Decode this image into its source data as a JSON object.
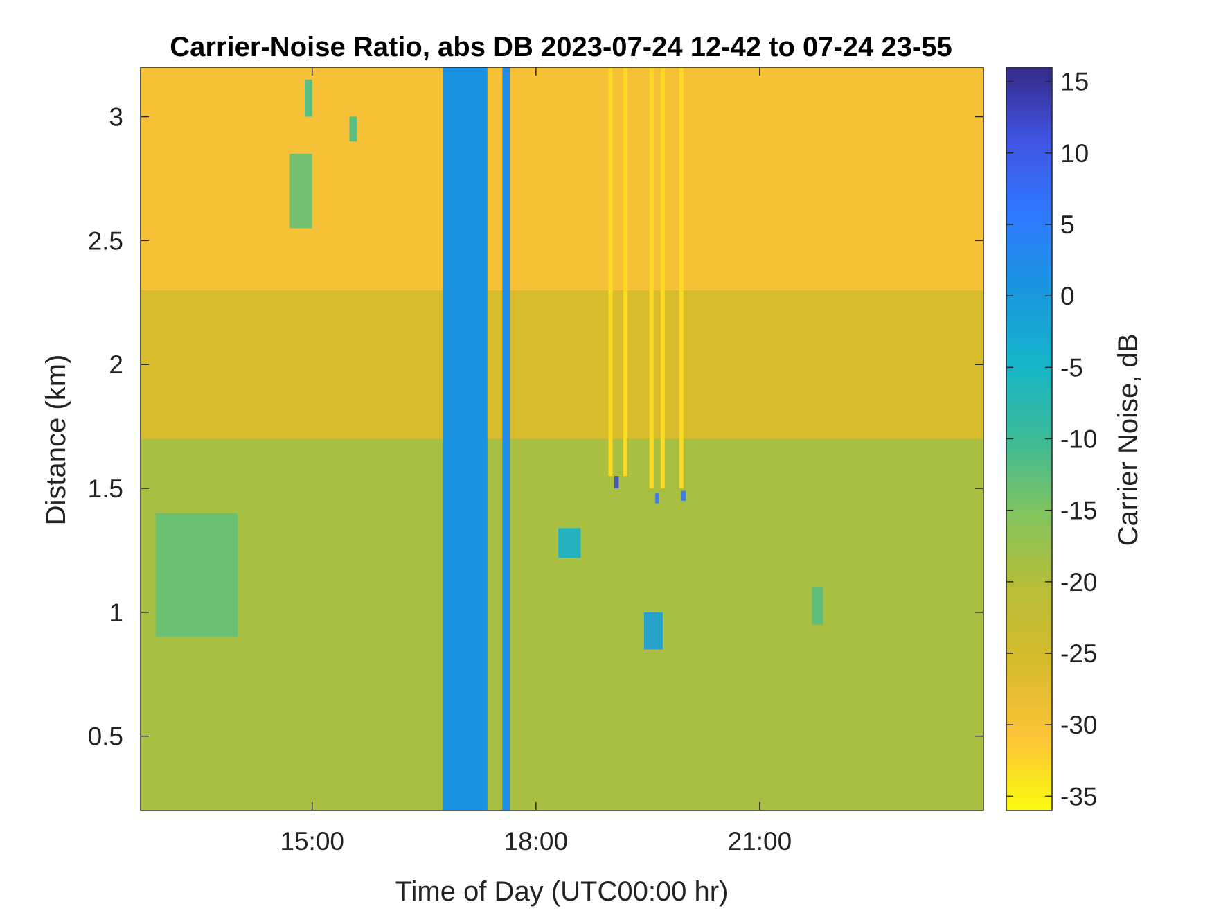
{
  "chart_data": {
    "type": "heatmap",
    "title": "Carrier-Noise Ratio, abs DB 2023-07-24 12-42 to 07-24 23-55",
    "xlabel": "Time of Day (UTC00:00 hr)",
    "ylabel": "Distance (km)",
    "x_range_hours": [
      12.7,
      24.0
    ],
    "y_range_km": [
      0.2,
      3.2
    ],
    "x_ticks": [
      {
        "value": 15,
        "label": "15:00"
      },
      {
        "value": 18,
        "label": "18:00"
      },
      {
        "value": 21,
        "label": "21:00"
      }
    ],
    "y_ticks": [
      {
        "value": 0.5,
        "label": "0.5"
      },
      {
        "value": 1.0,
        "label": "1"
      },
      {
        "value": 1.5,
        "label": "1.5"
      },
      {
        "value": 2.0,
        "label": "2"
      },
      {
        "value": 2.5,
        "label": "2.5"
      },
      {
        "value": 3.0,
        "label": "3"
      }
    ],
    "colorbar": {
      "label": "Carrier Noise, dB",
      "range": [
        -36,
        16
      ],
      "ticks": [
        "15",
        "10",
        "5",
        "0",
        "-5",
        "-10",
        "-15",
        "-20",
        "-25",
        "-30",
        "-35"
      ],
      "tick_values": [
        15,
        10,
        5,
        0,
        -5,
        -10,
        -15,
        -20,
        -25,
        -30,
        -35
      ],
      "colormap": "parula",
      "colors": [
        "#f9fb0e",
        "#fcc238",
        "#d6bb2b",
        "#b8bd38",
        "#81c45e",
        "#3cba98",
        "#15b6c8",
        "#1896df",
        "#2e79ff",
        "#4054e4",
        "#352a87"
      ]
    },
    "grid": false,
    "approximate_field": {
      "description_of_zones": "estimated values read from color",
      "background": [
        {
          "y_from": 2.3,
          "y_to": 3.2,
          "value": -30
        },
        {
          "y_from": 1.7,
          "y_to": 2.3,
          "value": -26
        },
        {
          "y_from": 0.2,
          "y_to": 1.7,
          "value": -19
        }
      ],
      "bands": [
        {
          "x_from": 16.75,
          "x_to": 17.35,
          "value": 1
        },
        {
          "x_from": 17.55,
          "x_to": 17.65,
          "value": 2
        }
      ],
      "cells": [
        {
          "x": 12.9,
          "y": 0.9,
          "w": 1.1,
          "h": 0.5,
          "value": -13
        },
        {
          "x": 14.7,
          "y": 2.55,
          "w": 0.3,
          "h": 0.3,
          "value": -13
        },
        {
          "x": 14.9,
          "y": 3.0,
          "w": 0.1,
          "h": 0.15,
          "value": -11
        },
        {
          "x": 15.5,
          "y": 2.9,
          "w": 0.1,
          "h": 0.1,
          "value": -11
        },
        {
          "x": 18.3,
          "y": 1.22,
          "w": 0.3,
          "h": 0.12,
          "value": -4
        },
        {
          "x": 19.45,
          "y": 0.85,
          "w": 0.25,
          "h": 0.15,
          "value": -1
        },
        {
          "x": 19.05,
          "y": 1.5,
          "w": 0.06,
          "h": 0.05,
          "value": 12
        },
        {
          "x": 19.6,
          "y": 1.44,
          "w": 0.05,
          "h": 0.04,
          "value": 6
        },
        {
          "x": 19.95,
          "y": 1.45,
          "w": 0.06,
          "h": 0.04,
          "value": 6
        },
        {
          "x": 21.7,
          "y": 0.95,
          "w": 0.15,
          "h": 0.15,
          "value": -12
        }
      ],
      "streaks": [
        {
          "x": 19.0,
          "y_from": 1.55,
          "y_to": 3.2,
          "value": -33
        },
        {
          "x": 19.2,
          "y_from": 1.55,
          "y_to": 3.2,
          "value": -33
        },
        {
          "x": 19.55,
          "y_from": 1.5,
          "y_to": 3.2,
          "value": -33
        },
        {
          "x": 19.7,
          "y_from": 1.5,
          "y_to": 3.2,
          "value": -33
        },
        {
          "x": 19.95,
          "y_from": 1.5,
          "y_to": 3.2,
          "value": -33
        }
      ]
    }
  }
}
